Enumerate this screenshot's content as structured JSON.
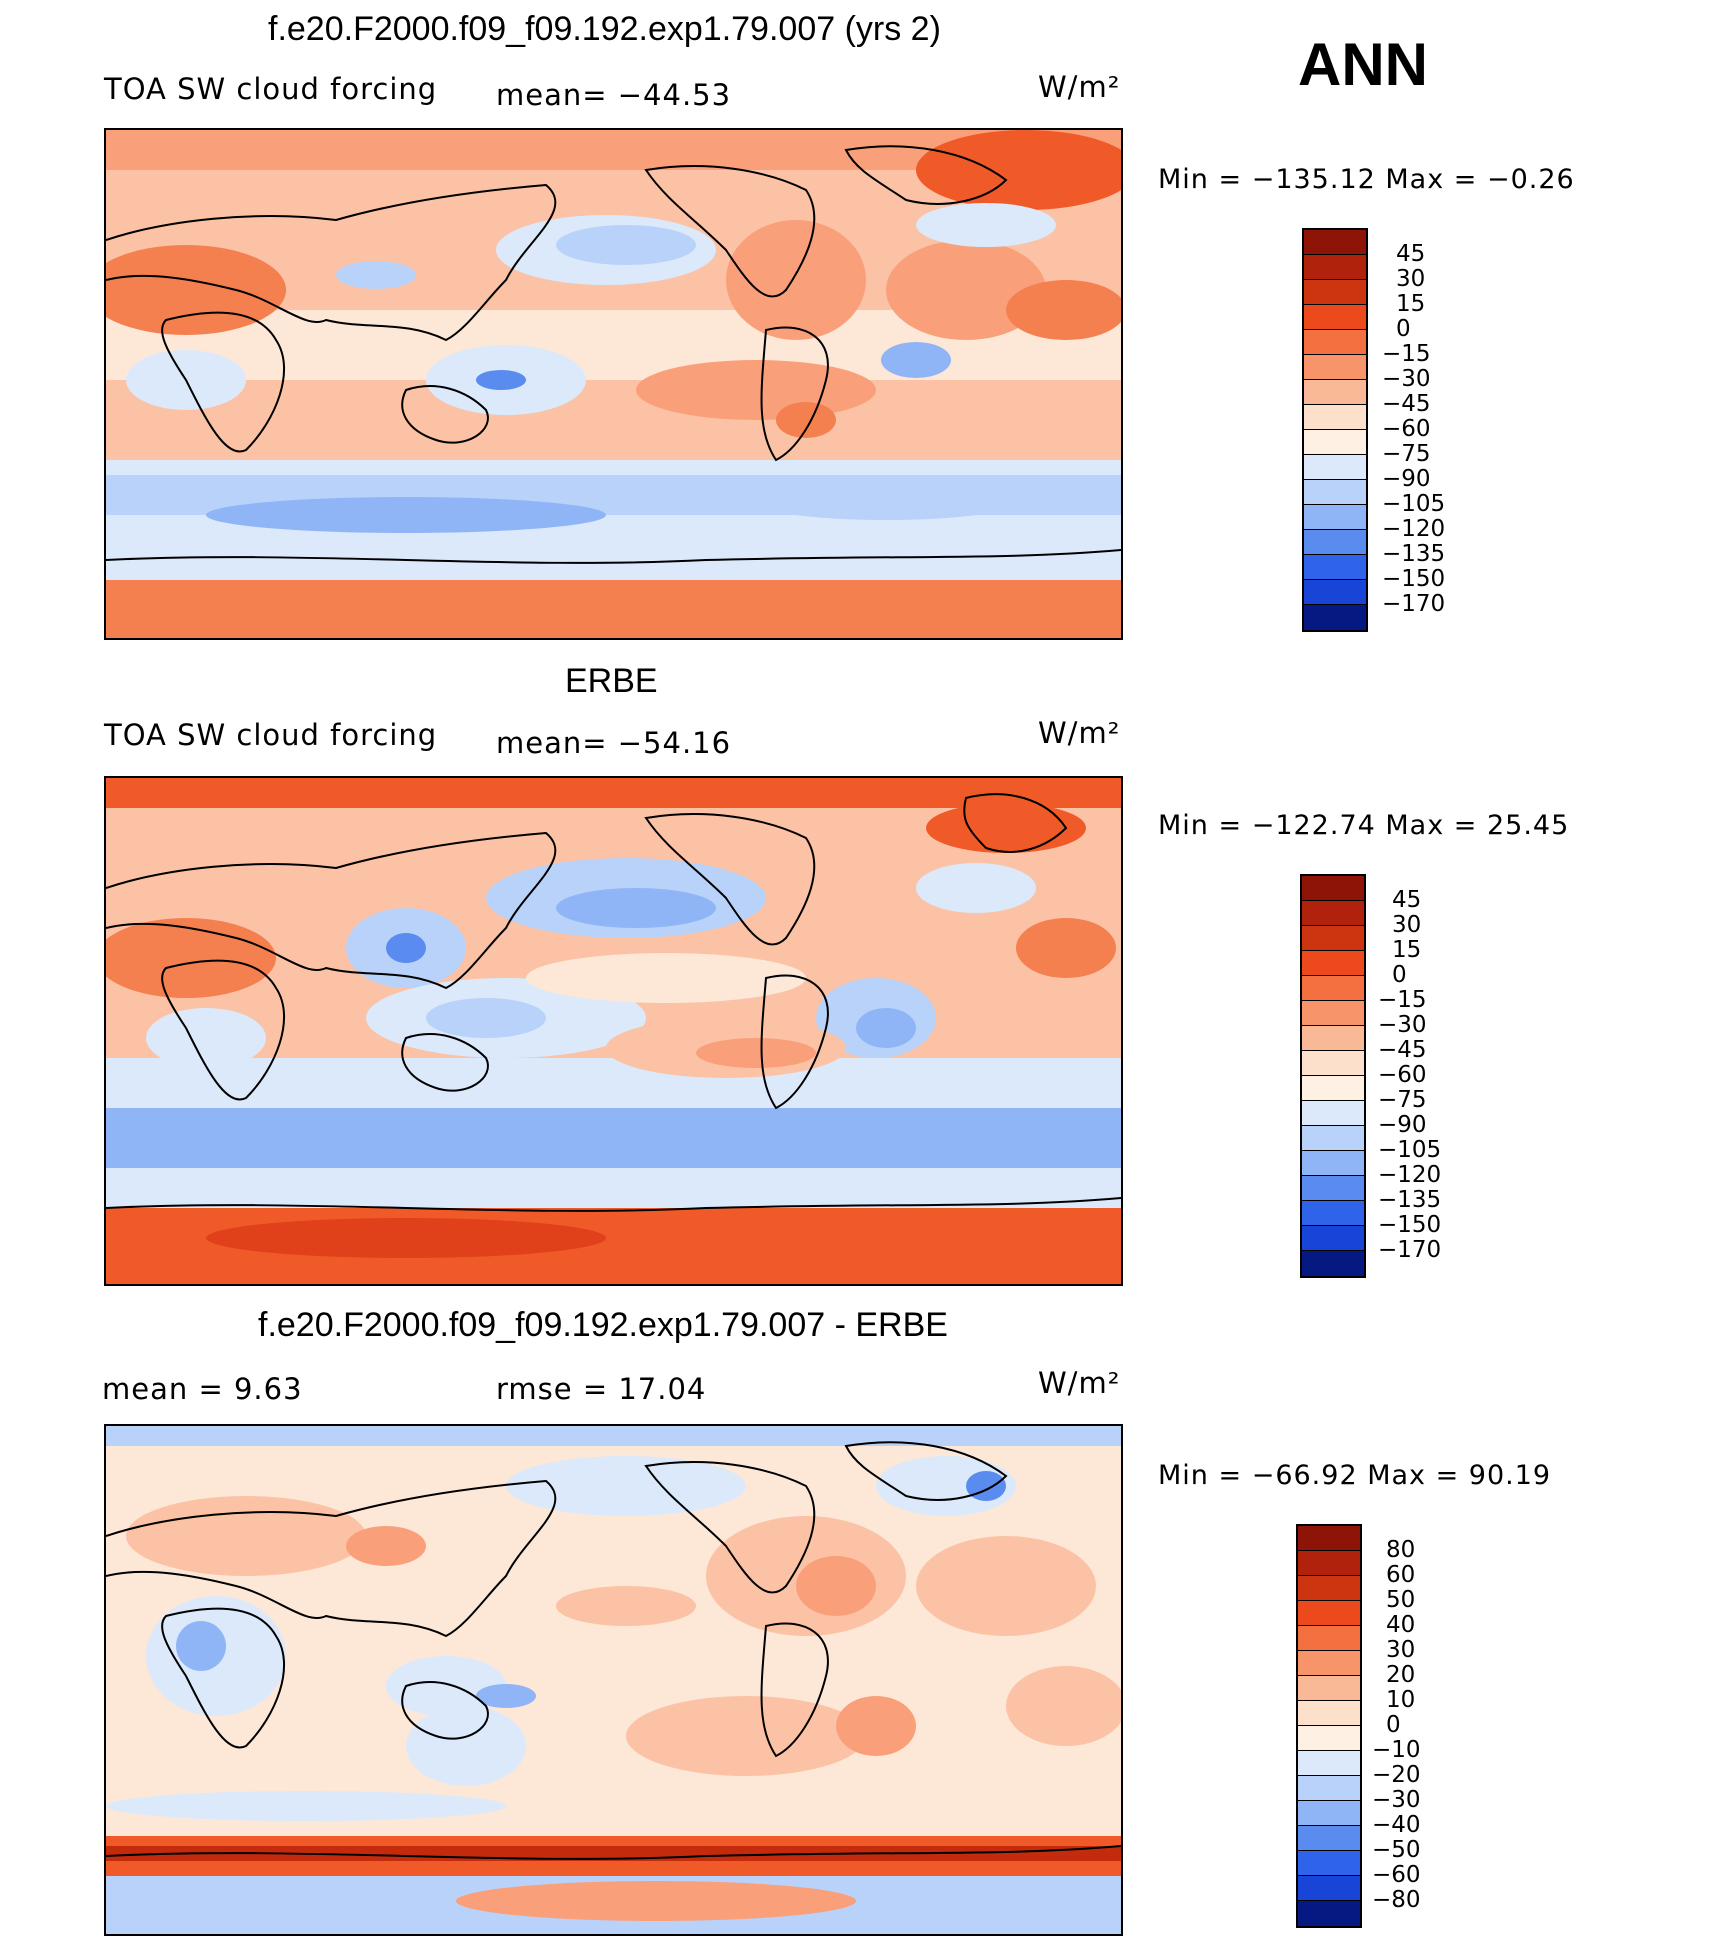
{
  "ann_label": "ANN",
  "units": "W/m²",
  "colors": {
    "warm": [
      "#fde8d8",
      "#fbc2a5",
      "#f9a07b",
      "#f47f4f",
      "#f05a28",
      "#e0401a",
      "#c42a0c",
      "#8f1408"
    ],
    "cool": [
      "#dbe9fb",
      "#b9d2f9",
      "#8fb5f7",
      "#5a8cf0",
      "#2f63ea",
      "#1845d8",
      "#0c2ab4",
      "#061882"
    ]
  },
  "panels": [
    {
      "title": "f.e20.F2000.f09_f09.192.exp1.79.007 (yrs 2)",
      "left_label": "TOA SW cloud forcing",
      "mean_label": "mean= −44.53",
      "units": "W/m²",
      "minmax_label": "Min  =  −135.12  Max  =   −0.26",
      "colorbar_ticks": [
        "45",
        "30",
        "15",
        "0",
        "−15",
        "−30",
        "−45",
        "−60",
        "−75",
        "−90",
        "−105",
        "−120",
        "−135",
        "−150",
        "−170"
      ],
      "colorbar_colors": [
        "#8f1408",
        "#b0220b",
        "#cc3510",
        "#ec4a1c",
        "#f47040",
        "#f7946a",
        "#f9b896",
        "#fde0cc",
        "#fff0e4",
        "#dbe9fb",
        "#b9d2f9",
        "#8fb5f7",
        "#5a8cf0",
        "#2f63ea",
        "#1845d8",
        "#061882"
      ]
    },
    {
      "title": "ERBE",
      "left_label": "TOA SW cloud forcing",
      "mean_label": "mean= −54.16",
      "units": "W/m²",
      "minmax_label": "Min  =  −122.74  Max  =   25.45",
      "colorbar_ticks": [
        "45",
        "30",
        "15",
        "0",
        "−15",
        "−30",
        "−45",
        "−60",
        "−75",
        "−90",
        "−105",
        "−120",
        "−135",
        "−150",
        "−170"
      ],
      "colorbar_colors": [
        "#8f1408",
        "#b0220b",
        "#cc3510",
        "#ec4a1c",
        "#f47040",
        "#f7946a",
        "#f9b896",
        "#fde0cc",
        "#fff0e4",
        "#dbe9fb",
        "#b9d2f9",
        "#8fb5f7",
        "#5a8cf0",
        "#2f63ea",
        "#1845d8",
        "#061882"
      ]
    },
    {
      "title": "f.e20.F2000.f09_f09.192.exp1.79.007 - ERBE",
      "left_label": "mean =    9.63",
      "mean_label": "rmse =   17.04",
      "units": "W/m²",
      "minmax_label": "Min  =  −66.92  Max  =   90.19",
      "colorbar_ticks": [
        "80",
        "60",
        "50",
        "40",
        "30",
        "20",
        "10",
        "0",
        "−10",
        "−20",
        "−30",
        "−40",
        "−50",
        "−60",
        "−80"
      ],
      "colorbar_colors": [
        "#8f1408",
        "#b0220b",
        "#cc3510",
        "#ec4a1c",
        "#f47040",
        "#f7946a",
        "#f9b896",
        "#fde0cc",
        "#fff0e4",
        "#dbe9fb",
        "#b9d2f9",
        "#8fb5f7",
        "#5a8cf0",
        "#2f63ea",
        "#1845d8",
        "#061882"
      ]
    }
  ]
}
